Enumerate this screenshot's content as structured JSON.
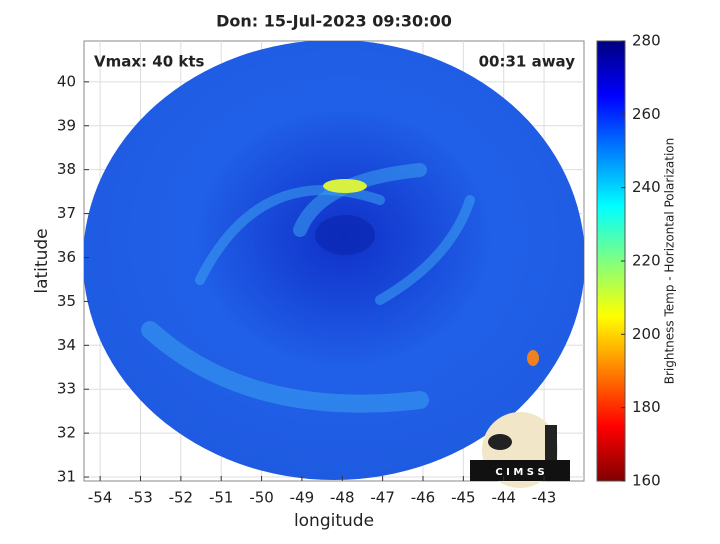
{
  "chart_data": {
    "type": "image",
    "title": "Don: 15-Jul-2023 09:30:00",
    "xlabel": "longitude",
    "ylabel": "latitude",
    "annotations": [
      "Vmax: 40 kts",
      "00:31 away"
    ],
    "xlim": [
      -54.4,
      -42.01
    ],
    "xticks": [
      -54,
      -53,
      -52,
      -51,
      -50,
      -49,
      -48,
      -47,
      -46,
      -45,
      -44,
      -43
    ],
    "ylim": [
      30.91,
      40.93
    ],
    "yticks": [
      31,
      32,
      33,
      34,
      35,
      36,
      37,
      38,
      39,
      40
    ],
    "grid": true,
    "colorbar_label": "Brightness Temp - Horizontal Polarization",
    "clim": [
      160,
      280
    ],
    "cticks": [
      160,
      180,
      200,
      220,
      240,
      260,
      280
    ],
    "logo_text": "C I M S S"
  }
}
